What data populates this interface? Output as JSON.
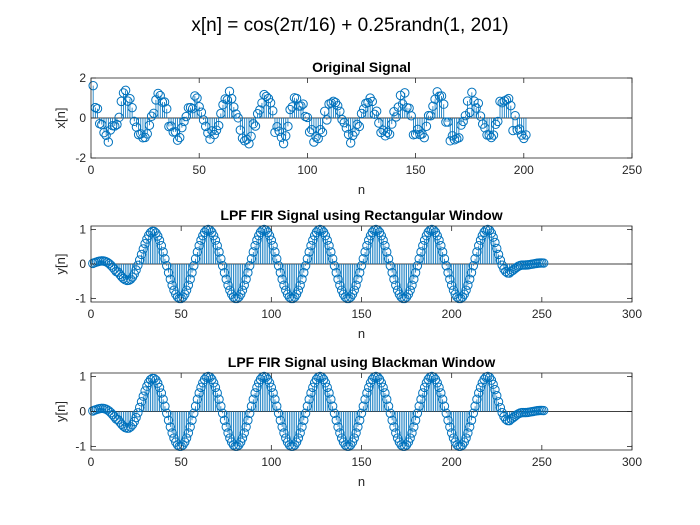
{
  "figure": {
    "suptitle": "x[n] = cos(2π/16) + 0.25randn(1, 201)"
  },
  "colors": {
    "series": "#0072BD",
    "axis": "#262626",
    "background": "#ffffff"
  },
  "chart_data": [
    {
      "type": "stem",
      "title": "Original Signal",
      "xlabel": "n",
      "ylabel": "x[n]",
      "xlim": [
        0,
        250
      ],
      "ylim": [
        -2,
        2
      ],
      "xticks": [
        0,
        50,
        100,
        150,
        200,
        250
      ],
      "yticks": [
        -2,
        0,
        2
      ],
      "grid": false,
      "signal": {
        "kind": "noisy-cosine",
        "length": 201,
        "period": 16,
        "amplitude": 1,
        "noise_std": 0.25,
        "first_n": 1
      }
    },
    {
      "type": "stem",
      "title": "LPF FIR Signal using Rectangular Window",
      "xlabel": "n",
      "ylabel": "y[n]",
      "xlim": [
        0,
        300
      ],
      "ylim": [
        -1.1,
        1.1
      ],
      "xticks": [
        0,
        50,
        100,
        150,
        200,
        250,
        300
      ],
      "yticks": [
        -1,
        0,
        1
      ],
      "grid": false,
      "signal": {
        "kind": "filtered-cosine",
        "length": 251,
        "period": 31,
        "amplitude": 1.0,
        "peak_n": 220,
        "ramp_in": [
          0,
          40
        ],
        "ramp_out": [
          220,
          240
        ],
        "first_n": 1
      }
    },
    {
      "type": "stem",
      "title": "LPF FIR Signal using Blackman Window",
      "xlabel": "n",
      "ylabel": "y[n]",
      "xlim": [
        0,
        300
      ],
      "ylim": [
        -1.1,
        1.1
      ],
      "xticks": [
        0,
        50,
        100,
        150,
        200,
        250,
        300
      ],
      "yticks": [
        -1,
        0,
        1
      ],
      "grid": false,
      "signal": {
        "kind": "filtered-cosine",
        "length": 251,
        "period": 31,
        "amplitude": 1.0,
        "peak_n": 220,
        "ramp_in": [
          0,
          40
        ],
        "ramp_out": [
          220,
          240
        ],
        "first_n": 1
      }
    }
  ]
}
